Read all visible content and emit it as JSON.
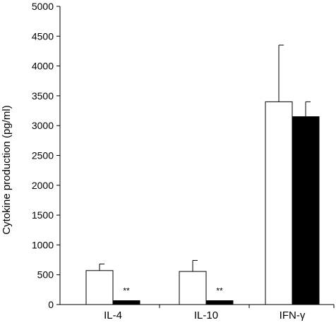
{
  "chart_data": {
    "type": "bar",
    "categories": [
      "IL-4",
      "IL-10",
      "IFN-γ"
    ],
    "ylabel": "Cytokine production (pg/ml)",
    "xlabel": "",
    "ylim": [
      0,
      5000
    ],
    "yticks": [
      0,
      500,
      1000,
      1500,
      2000,
      2500,
      3000,
      3500,
      4000,
      4500,
      5000
    ],
    "grid": false,
    "series": [
      {
        "fill": "#ffffff",
        "values": [
          570,
          555,
          3400
        ],
        "errors": [
          110,
          185,
          950
        ]
      },
      {
        "fill": "#000000",
        "values": [
          65,
          65,
          3150
        ],
        "errors": [
          0,
          0,
          250
        ]
      }
    ],
    "annotations": [
      {
        "category": "IL-4",
        "series": 1,
        "text": "**"
      },
      {
        "category": "IL-10",
        "series": 1,
        "text": "**"
      }
    ]
  }
}
